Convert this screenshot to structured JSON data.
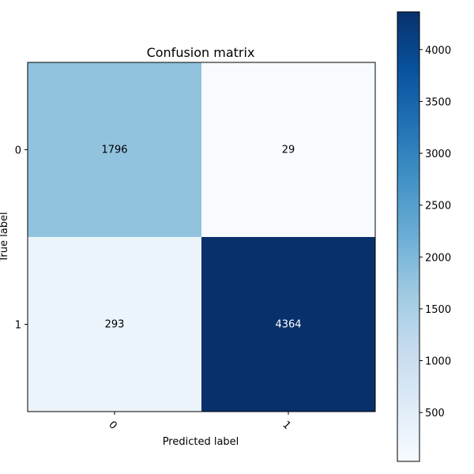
{
  "chart_data": {
    "type": "heatmap",
    "title": "Confusion matrix",
    "xlabel": "Predicted label",
    "ylabel": "True label",
    "x_categories": [
      "0",
      "1"
    ],
    "y_categories": [
      "0",
      "1"
    ],
    "values": [
      [
        1796,
        29
      ],
      [
        293,
        4364
      ]
    ],
    "colormap": "Blues",
    "colorbar": {
      "range": [
        29,
        4364
      ],
      "ticks": [
        500,
        1000,
        1500,
        2000,
        2500,
        3000,
        3500,
        4000
      ]
    },
    "grid": false
  }
}
